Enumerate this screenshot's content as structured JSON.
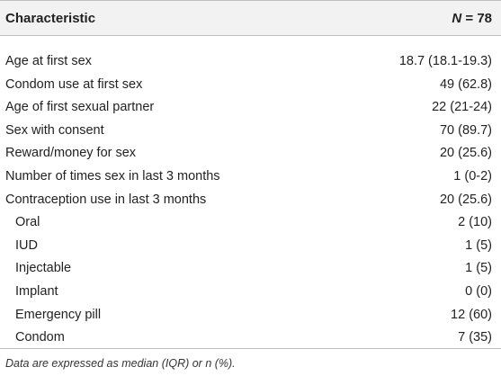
{
  "table": {
    "header": {
      "label": "Characteristic",
      "value_symbol": "N",
      "value_rest": " = 78"
    },
    "rows": [
      {
        "label": "Age at first sex",
        "value": "18.7 (18.1-19.3)",
        "indent": false
      },
      {
        "label": "Condom use at first sex",
        "value": "49 (62.8)",
        "indent": false
      },
      {
        "label": "Age of first sexual partner",
        "value": "22 (21-24)",
        "indent": false
      },
      {
        "label": "Sex with consent",
        "value": "70 (89.7)",
        "indent": false
      },
      {
        "label": "Reward/money for sex",
        "value": "20 (25.6)",
        "indent": false
      },
      {
        "label": "Number of times sex in last 3 months",
        "value": "1 (0-2)",
        "indent": false
      },
      {
        "label": "Contraception use in last 3 months",
        "value": "20 (25.6)",
        "indent": false
      },
      {
        "label": "Oral",
        "value": "2 (10)",
        "indent": true
      },
      {
        "label": "IUD",
        "value": "1 (5)",
        "indent": true
      },
      {
        "label": "Injectable",
        "value": "1 (5)",
        "indent": true
      },
      {
        "label": "Implant",
        "value": "0 (0)",
        "indent": true
      },
      {
        "label": "Emergency pill",
        "value": "12 (60)",
        "indent": true
      },
      {
        "label": "Condom",
        "value": "7 (35)",
        "indent": true
      }
    ],
    "footnote": "Data are expressed as median (IQR) or n (%)."
  }
}
